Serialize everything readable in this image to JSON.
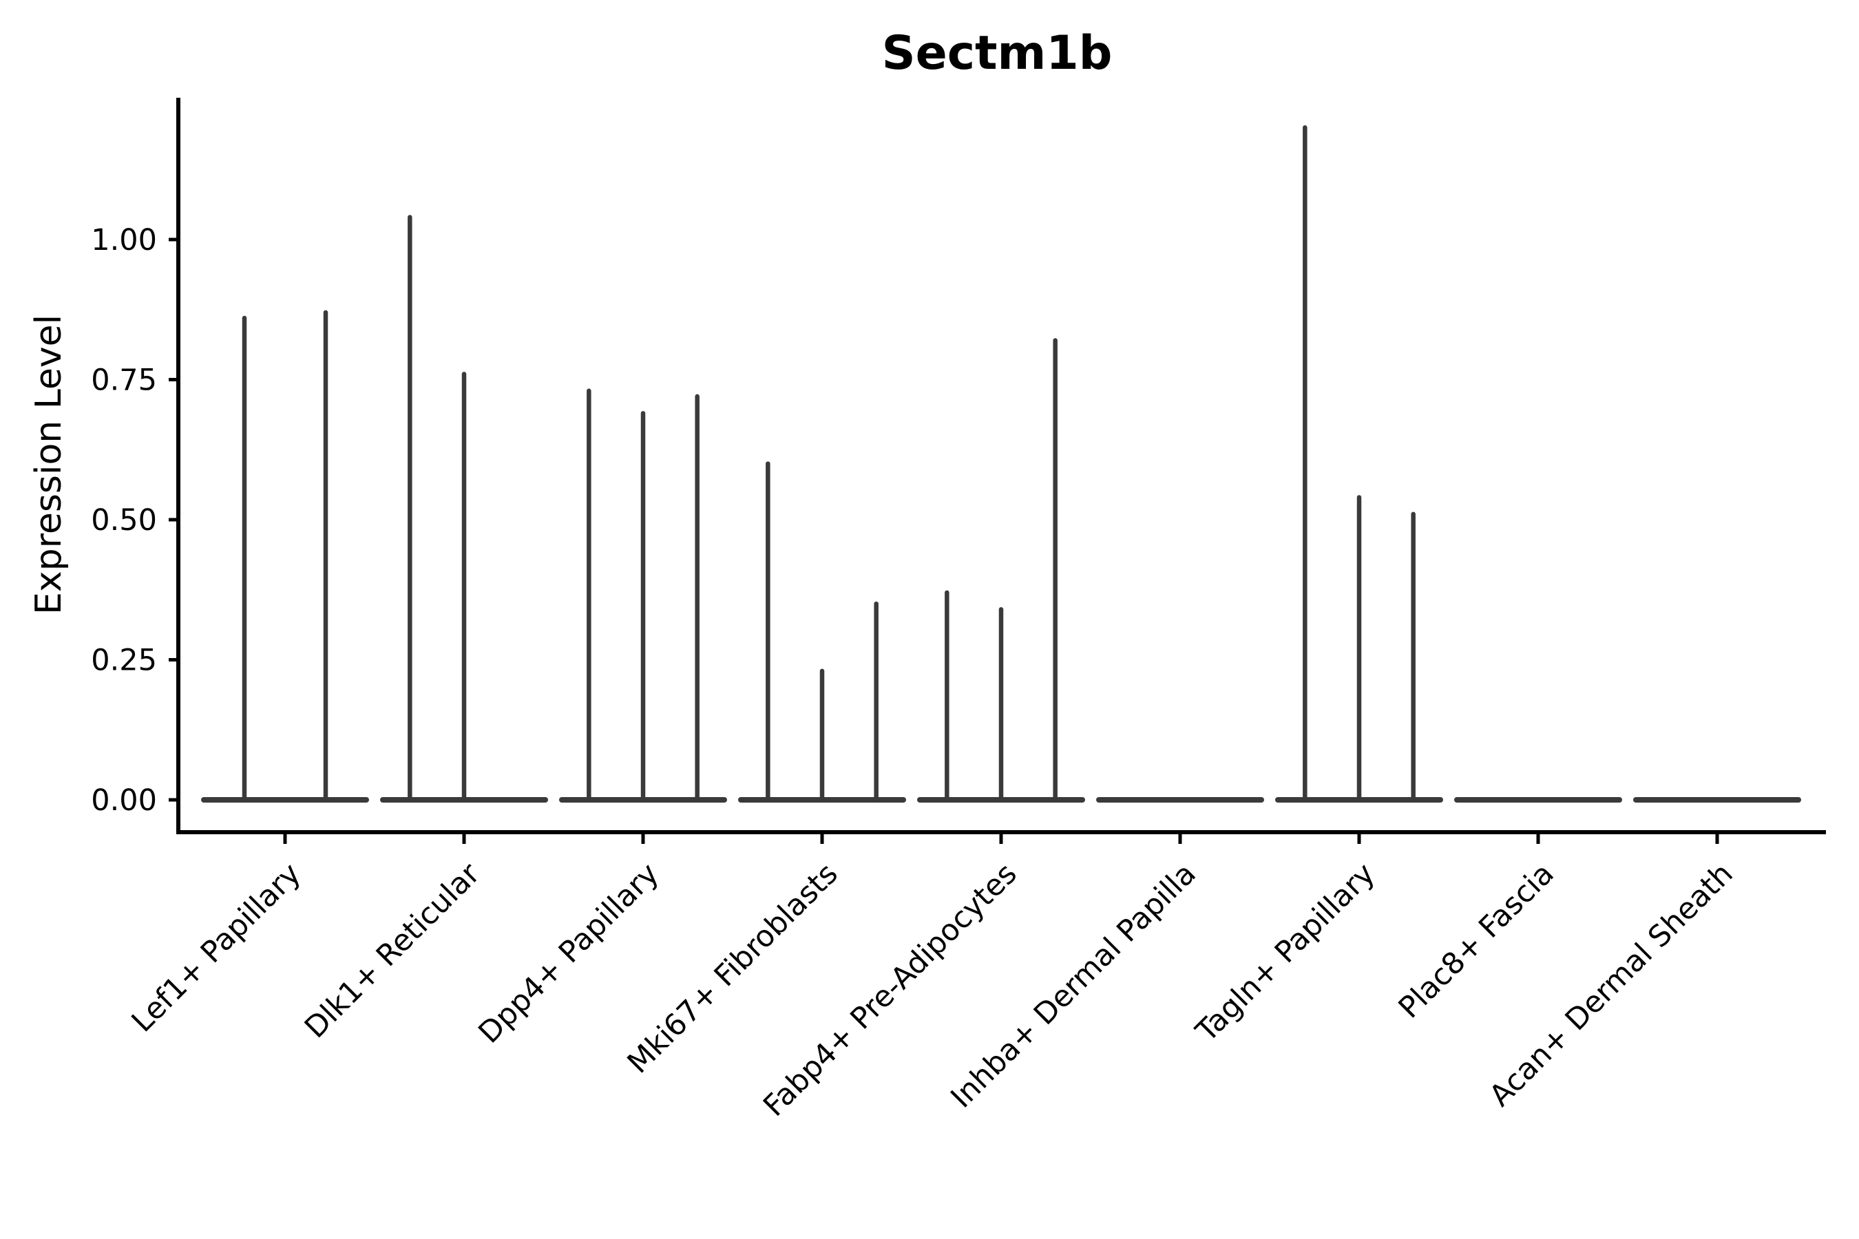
{
  "chart_data": {
    "type": "violin",
    "title": "Sectm1b",
    "ylabel": "Expression Level",
    "xlabel": "",
    "grid": false,
    "legend_position": "none",
    "ylim": [
      -0.06,
      1.25
    ],
    "yticks": [
      0.0,
      0.25,
      0.5,
      0.75,
      1.0
    ],
    "ytick_labels": [
      "0.00",
      "0.25",
      "0.50",
      "0.75",
      "1.00"
    ],
    "categories": [
      "Lef1+ Papillary",
      "Dlk1+ Reticular",
      "Dpp4+ Papillary",
      "Mki67+ Fibroblasts",
      "Fabp4+ Pre-Adipocytes",
      "Inhba+ Dermal Papilla",
      "Tagln+ Papillary",
      "Plac8+ Fascia",
      "Acan+ Dermal Sheath"
    ],
    "violins": [
      {
        "category": "Lef1+ Papillary",
        "maxima": [
          0.86,
          0.87
        ]
      },
      {
        "category": "Dlk1+ Reticular",
        "maxima": [
          1.04,
          0.76,
          0.0
        ]
      },
      {
        "category": "Dpp4+ Papillary",
        "maxima": [
          0.73,
          0.69,
          0.72
        ]
      },
      {
        "category": "Mki67+ Fibroblasts",
        "maxima": [
          0.6,
          0.23,
          0.35
        ]
      },
      {
        "category": "Fabp4+ Pre-Adipocytes",
        "maxima": [
          0.37,
          0.34,
          0.82
        ]
      },
      {
        "category": "Inhba+ Dermal Papilla",
        "maxima": [
          0.0,
          0.0,
          0.0
        ]
      },
      {
        "category": "Tagln+ Papillary",
        "maxima": [
          1.2,
          0.54,
          0.51
        ]
      },
      {
        "category": "Plac8+ Fascia",
        "maxima": [
          0.0,
          0.0,
          0.0
        ]
      },
      {
        "category": "Acan+ Dermal Sheath",
        "maxima": [
          0.0,
          0.0,
          0.0
        ]
      }
    ],
    "colors": {
      "violin_stroke": "#3a3a3a",
      "axis": "#000000",
      "text": "#000000",
      "background": "#ffffff"
    }
  }
}
